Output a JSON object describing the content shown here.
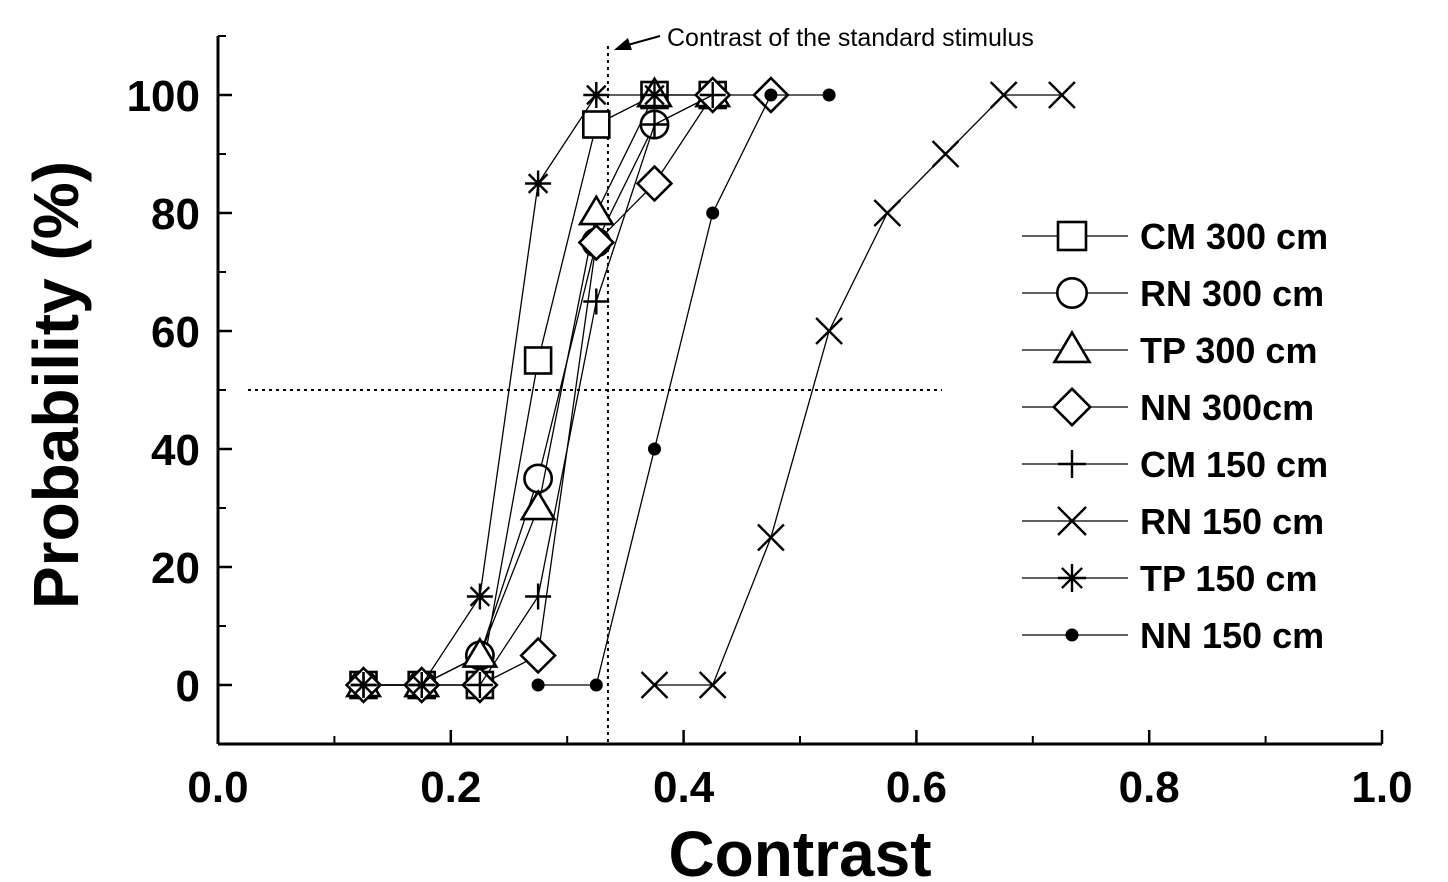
{
  "chart_data": {
    "type": "scatter",
    "xlabel": "Contrast",
    "ylabel": "Probability (%)",
    "xlim": [
      0.0,
      1.0
    ],
    "ylim": [
      -10,
      110
    ],
    "xticks": [
      "0.0",
      "0.2",
      "0.4",
      "0.6",
      "0.8",
      "1.0"
    ],
    "yticks": [
      "0",
      "20",
      "40",
      "60",
      "80",
      "100"
    ],
    "xtick_values": [
      0.0,
      0.2,
      0.4,
      0.6,
      0.8,
      1.0
    ],
    "ytick_values": [
      0,
      20,
      40,
      60,
      80,
      100
    ],
    "grid": false,
    "legend_position": "right",
    "reference_lines": {
      "x": 0.335,
      "y": 50,
      "style": "dotted"
    },
    "annotation": {
      "text": "Contrast of the standard stimulus",
      "points_to_x": 0.335
    },
    "series": [
      {
        "name": "CM 300 cm",
        "marker": "square",
        "x": [
          0.125,
          0.175,
          0.225,
          0.275,
          0.325,
          0.375,
          0.425
        ],
        "y": [
          0,
          0,
          0,
          55,
          95,
          100,
          100
        ]
      },
      {
        "name": "RN 300 cm",
        "marker": "circle",
        "x": [
          0.125,
          0.175,
          0.225,
          0.275,
          0.325,
          0.375
        ],
        "y": [
          0,
          0,
          5,
          35,
          75,
          95
        ]
      },
      {
        "name": "TP 300 cm",
        "marker": "triangle",
        "x": [
          0.125,
          0.175,
          0.225,
          0.275,
          0.325,
          0.375,
          0.425
        ],
        "y": [
          0,
          0,
          5,
          30,
          80,
          100,
          100
        ]
      },
      {
        "name": "NN 300cm",
        "marker": "diamond",
        "x": [
          0.125,
          0.175,
          0.225,
          0.275,
          0.325,
          0.375,
          0.425,
          0.475
        ],
        "y": [
          0,
          0,
          0,
          5,
          75,
          85,
          100,
          100
        ]
      },
      {
        "name": "CM 150 cm",
        "marker": "plus",
        "x": [
          0.125,
          0.175,
          0.225,
          0.275,
          0.325,
          0.375,
          0.425
        ],
        "y": [
          0,
          0,
          0,
          15,
          65,
          95,
          100
        ]
      },
      {
        "name": "RN 150 cm",
        "marker": "x",
        "x": [
          0.375,
          0.425,
          0.475,
          0.525,
          0.575,
          0.625,
          0.675,
          0.725
        ],
        "y": [
          0,
          0,
          25,
          60,
          80,
          90,
          100,
          100
        ]
      },
      {
        "name": "TP 150 cm",
        "marker": "asterisk",
        "x": [
          0.125,
          0.175,
          0.225,
          0.275,
          0.325,
          0.375
        ],
        "y": [
          0,
          0,
          15,
          85,
          100,
          100
        ]
      },
      {
        "name": "NN 150 cm",
        "marker": "dot",
        "x": [
          0.275,
          0.325,
          0.375,
          0.425,
          0.475,
          0.525
        ],
        "y": [
          0,
          0,
          40,
          80,
          100,
          100
        ]
      }
    ]
  }
}
